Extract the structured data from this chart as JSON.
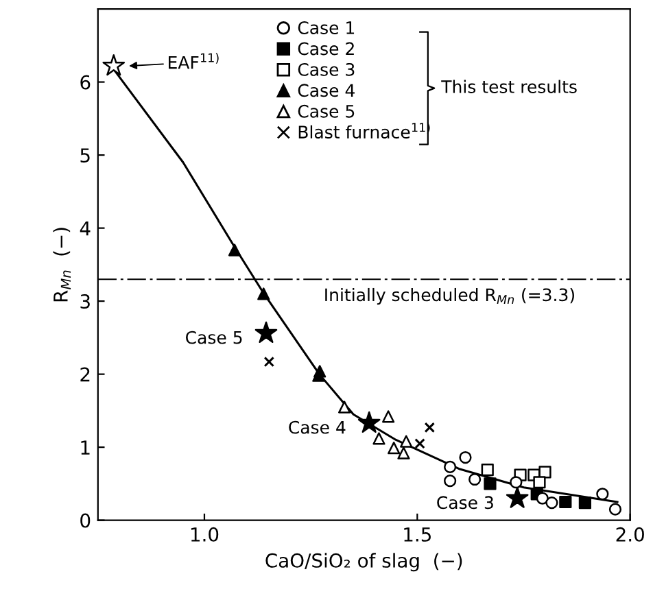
{
  "chart_data": {
    "type": "scatter",
    "xlabel": "CaO/SiO₂ of slag  (−)",
    "ylabel": "R$_{Mn}$  (−)",
    "xlim": [
      0.75,
      2.0
    ],
    "xticks": [
      {
        "value": 1.0,
        "label": "1.0"
      },
      {
        "value": 1.5,
        "label": "1.5"
      },
      {
        "value": 2.0,
        "label": "2.0"
      }
    ],
    "ylim": [
      0,
      7
    ],
    "yticks": [
      0,
      1,
      2,
      3,
      4,
      5,
      6
    ],
    "grid": false,
    "legend": "top",
    "series": [
      {
        "name": "Case 1",
        "marker": "circle",
        "color": "#ffffff",
        "x": [
          1.577,
          1.613,
          1.577,
          1.635,
          1.732,
          1.794,
          1.816,
          1.935,
          1.965
        ],
        "values": [
          0.73,
          0.86,
          0.54,
          0.56,
          0.52,
          0.3,
          0.24,
          0.36,
          0.15
        ]
      },
      {
        "name": "Case 2",
        "marker": "square",
        "color": "#000000",
        "x": [
          1.671,
          1.781,
          1.848,
          1.894
        ],
        "values": [
          0.5,
          0.36,
          0.25,
          0.24
        ]
      },
      {
        "name": "Case 3",
        "marker": "square",
        "color": "#ffffff",
        "x": [
          1.665,
          1.742,
          1.774,
          1.8,
          1.787
        ],
        "values": [
          0.69,
          0.62,
          0.62,
          0.66,
          0.52
        ]
      },
      {
        "name": "Case 4",
        "marker": "triangle",
        "color": "#000000",
        "x": [
          1.071,
          1.139,
          1.271,
          1.268
        ],
        "values": [
          3.7,
          3.1,
          2.04,
          1.98
        ]
      },
      {
        "name": "Case 5",
        "marker": "triangle",
        "color": "#ffffff",
        "x": [
          1.329,
          1.432,
          1.41,
          1.445,
          1.474,
          1.468
        ],
        "values": [
          1.55,
          1.42,
          1.12,
          0.99,
          1.08,
          0.92
        ]
      },
      {
        "name": "Blast furnace$^{11)}$",
        "marker": "cross",
        "color": "#000000",
        "x": [
          1.152,
          1.529,
          1.506
        ],
        "values": [
          2.17,
          1.27,
          1.05
        ]
      },
      {
        "marker": "star",
        "color": "#000000",
        "x": [
          1.145,
          1.387,
          1.735
        ],
        "values": [
          2.56,
          1.33,
          0.3
        ]
      },
      {
        "marker": "star",
        "color": "#ffffff",
        "x": [
          0.787
        ],
        "values": [
          6.22
        ]
      },
      {
        "type": "line",
        "marker": "none",
        "line_style": "solid",
        "color": "#000000",
        "x": [
          0.79,
          0.95,
          1.07,
          1.14,
          1.27,
          1.35,
          1.45,
          1.6,
          1.75,
          1.97
        ],
        "values": [
          6.15,
          4.9,
          3.75,
          3.1,
          2.0,
          1.45,
          1.1,
          0.7,
          0.45,
          0.25
        ]
      }
    ],
    "ref_lines": [
      {
        "axis": "y",
        "value": 3.3,
        "label": "Initially scheduled R$_{Mn}$ (=3.3)",
        "line_style": "dashdot",
        "color": "#000000"
      }
    ],
    "annotations": [
      "EAF$^{11)}$",
      {
        "text": "Case 5",
        "x": 1.145,
        "y": 2.56
      },
      {
        "text": "Case 4",
        "x": 1.387,
        "y": 1.33
      },
      {
        "text": "Case 3",
        "x": 1.735,
        "y": 0.3
      },
      "This test results"
    ]
  }
}
